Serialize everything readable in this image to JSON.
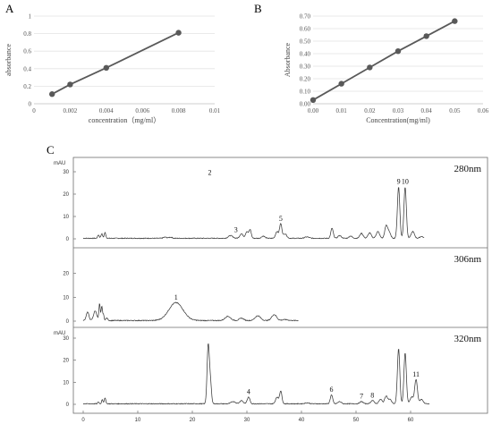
{
  "figure": {
    "panel_a_label": "A",
    "panel_b_label": "B",
    "panel_c_label": "C"
  },
  "chart_data": [
    {
      "type": "line",
      "panel": "A",
      "xlabel": "concentration（mg/ml）",
      "ylabel": "absorbance",
      "xlim": [
        0,
        0.01
      ],
      "ylim": [
        0,
        1
      ],
      "x_ticks": [
        "0",
        "0.002",
        "0.004",
        "0.006",
        "0.008",
        "0.01"
      ],
      "y_ticks": [
        "0",
        "0.2",
        "0.4",
        "0.6",
        "0.8",
        "1"
      ],
      "grid": true,
      "series": [
        {
          "x": [
            0.001,
            0.002,
            0.004,
            0.008
          ],
          "y": [
            0.11,
            0.22,
            0.41,
            0.81
          ]
        }
      ],
      "color": "#595959"
    },
    {
      "type": "line",
      "panel": "B",
      "xlabel": "Concentration(mg/ml)",
      "ylabel": "Absorbance",
      "xlim": [
        0,
        0.06
      ],
      "ylim": [
        0,
        0.7
      ],
      "x_ticks": [
        "0.00",
        "0.01",
        "0.02",
        "0.03",
        "0.04",
        "0.05",
        "0.06"
      ],
      "y_ticks": [
        "0.00",
        "0.10",
        "0.20",
        "0.30",
        "0.40",
        "0.50",
        "0.60",
        "0.70"
      ],
      "grid": true,
      "series": [
        {
          "x": [
            0.0,
            0.01,
            0.02,
            0.03,
            0.04,
            0.05
          ],
          "y": [
            0.03,
            0.16,
            0.29,
            0.42,
            0.54,
            0.66
          ]
        }
      ],
      "color": "#595959"
    },
    {
      "type": "line",
      "panel": "C",
      "y_unit": "mAU",
      "xlim": [
        0,
        70
      ],
      "x_ticks": [
        "0",
        "10",
        "20",
        "30",
        "40",
        "50",
        "60"
      ],
      "traces": [
        {
          "wavelength": "280nm",
          "y_ticks": [
            "0",
            "10",
            "20",
            "30"
          ],
          "ylim": [
            0,
            36
          ],
          "peaks": [
            {
              "label": "2",
              "rt": 23.2,
              "height": 27
            },
            {
              "label": "3",
              "rt": 28.0,
              "height": 1.5
            },
            {
              "label": "5",
              "rt": 36.2,
              "height": 6.5
            },
            {
              "label": "9",
              "rt": 57.8,
              "height": 23
            },
            {
              "label": "10",
              "rt": 59.0,
              "height": 23
            }
          ]
        },
        {
          "wavelength": "306nm",
          "y_ticks": [
            "0",
            "10",
            "20"
          ],
          "ylim": [
            0,
            27
          ],
          "peaks": [
            {
              "label": "1",
              "rt": 17.0,
              "height": 7.5
            }
          ]
        },
        {
          "wavelength": "320nm",
          "y_ticks": [
            "0",
            "10",
            "20",
            "30"
          ],
          "ylim": [
            0,
            36
          ],
          "x_axis_labels": true,
          "peaks": [
            {
              "label": "4",
              "rt": 30.3,
              "height": 3.0
            },
            {
              "label": "6",
              "rt": 45.5,
              "height": 4.0
            },
            {
              "label": "7",
              "rt": 51.0,
              "height": 1.0
            },
            {
              "label": "8",
              "rt": 53.0,
              "height": 1.5
            },
            {
              "label": "11",
              "rt": 61.0,
              "height": 11.0
            }
          ]
        }
      ]
    }
  ]
}
